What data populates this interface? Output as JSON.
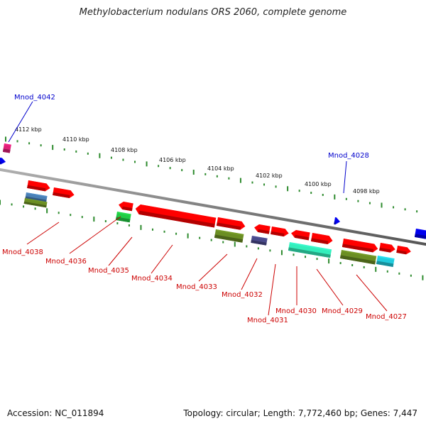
{
  "title": "Methylobacterium nodulans ORS 2060, complete genome",
  "footer": {
    "accession": "Accession: NC_011894",
    "summary": "Topology: circular; Length: 7,772,460 bp; Genes: 7,447"
  },
  "colors": {
    "backbone": "#808080",
    "tick": "#2e8b2e",
    "forward_label": "#0000cc",
    "reverse_label": "#cc0000",
    "gene": "#ff0000",
    "pink": "#e0207a",
    "green": "#22cc44",
    "olive": "#6b8e23",
    "steelblue": "#4a7fb5",
    "slate": "#4a4a8a",
    "aquamarine": "#33eebb",
    "cyan": "#22ccdd",
    "blue": "#0000ee"
  },
  "kbp_labels": [
    "4112 kbp",
    "4110 kbp",
    "4108 kbp",
    "4106 kbp",
    "4104 kbp",
    "4102 kbp",
    "4100 kbp",
    "4098 kbp"
  ],
  "forward_genes": [
    "Mnod_4042",
    "Mnod_4028"
  ],
  "reverse_genes": [
    "Mnod_4038",
    "Mnod_4036",
    "Mnod_4035",
    "Mnod_4034",
    "Mnod_4033",
    "Mnod_4032",
    "Mnod_4031",
    "Mnod_4030",
    "Mnod_4029",
    "Mnod_4027"
  ]
}
